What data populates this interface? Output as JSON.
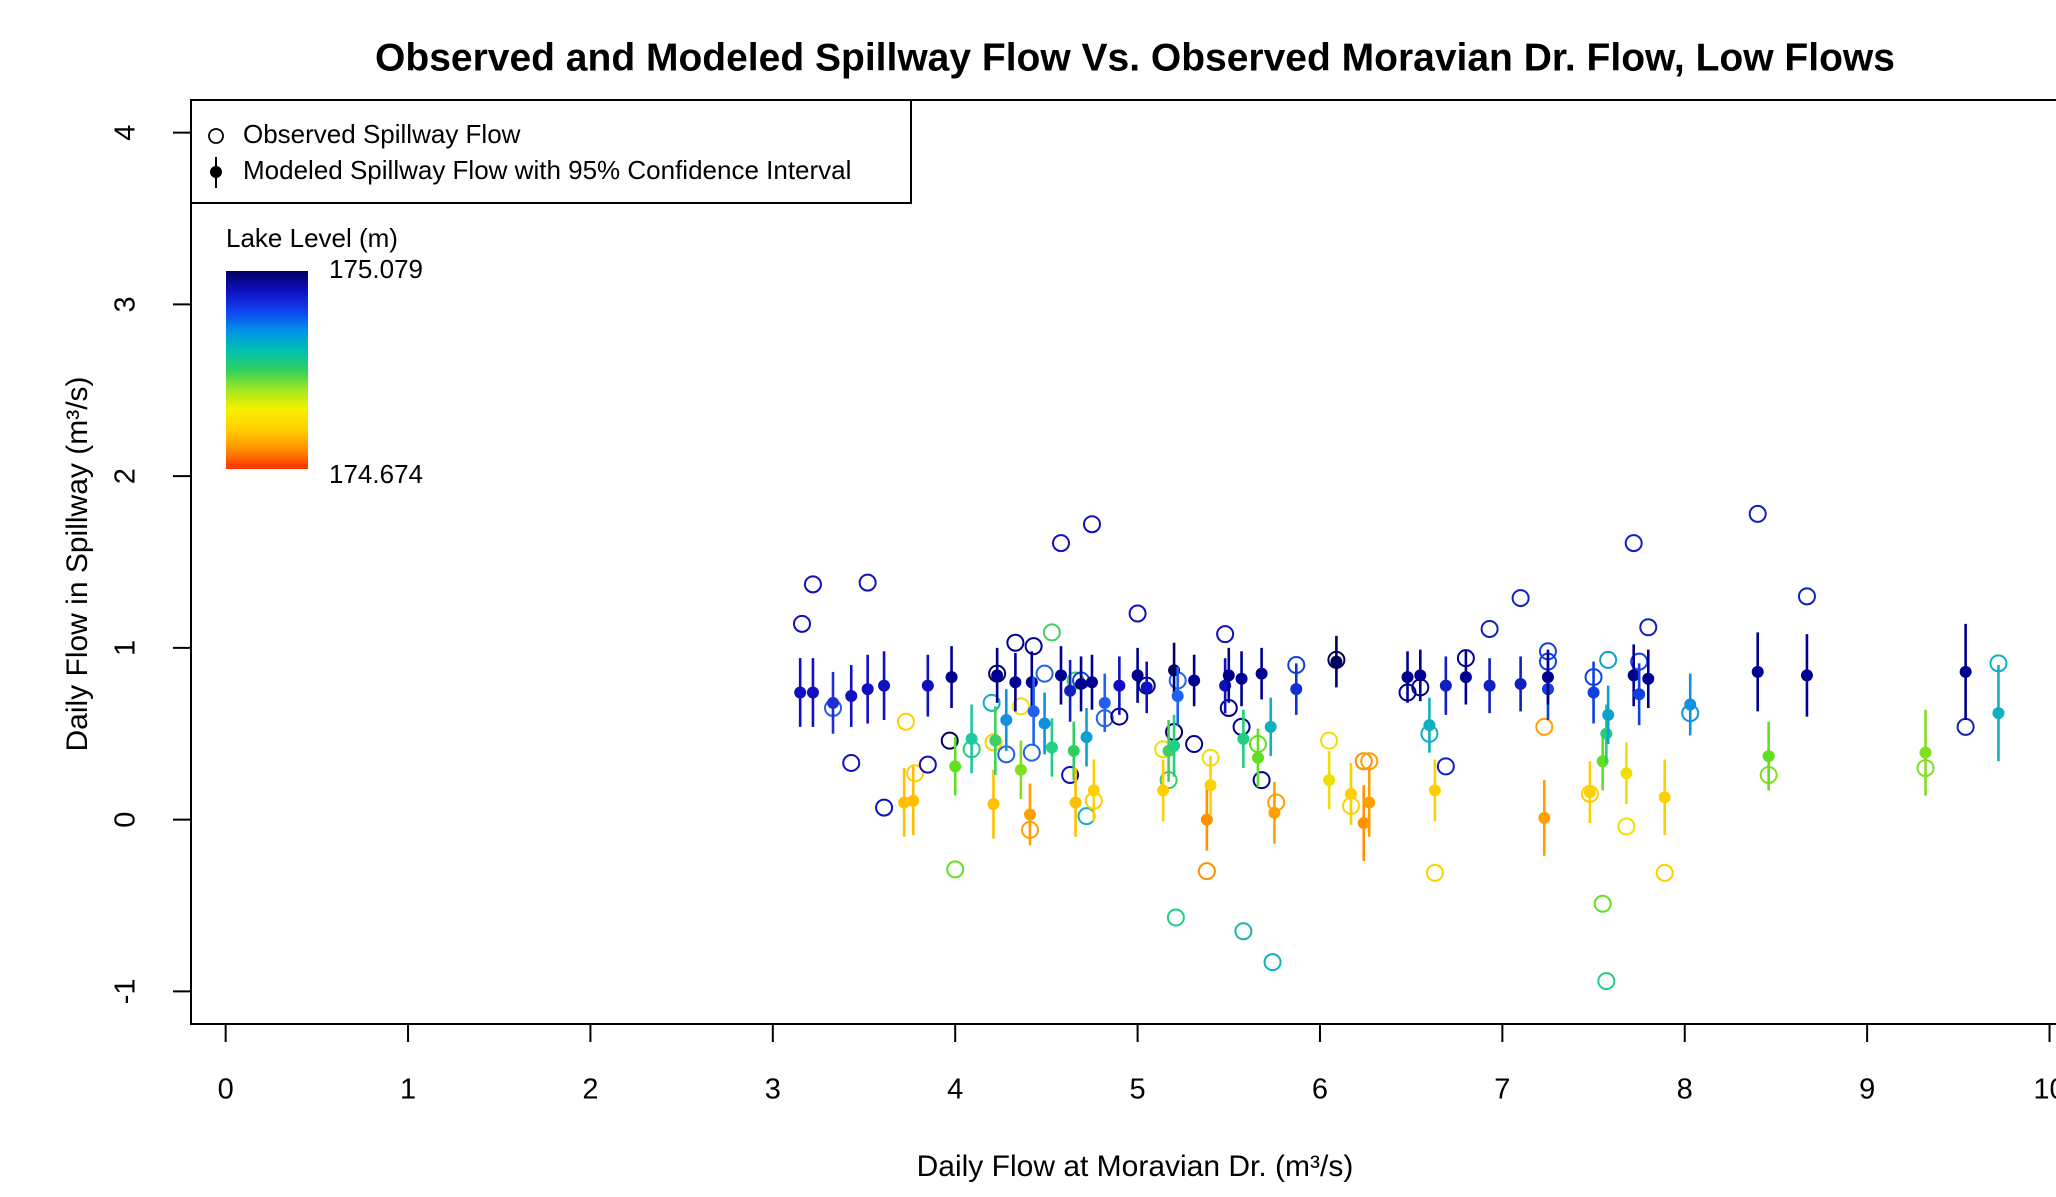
{
  "chart_data": {
    "type": "scatter",
    "title": "Observed and Modeled Spillway Flow Vs. Observed Moravian Dr. Flow, Low Flows",
    "x_label": "Daily Flow at Moravian Dr. (m³/s)",
    "y_label": "Daily Flow in Spillway (m³/s)",
    "xlim": [
      -0.19,
      10.03
    ],
    "ylim": [
      -1.19,
      4.19
    ],
    "xticks": [
      0,
      1,
      2,
      3,
      4,
      5,
      6,
      7,
      8,
      9,
      10
    ],
    "yticks": [
      -1,
      0,
      1,
      2,
      3,
      4
    ],
    "grid": false,
    "legend": {
      "position": "top-left"
    },
    "colorbar": {
      "title": "Lake Level (m)",
      "max": 175.079,
      "min": 174.674,
      "colors": [
        "#ff3000",
        "#ff9000",
        "#ffd000",
        "#f8f000",
        "#a0e820",
        "#30d060",
        "#00c0b0",
        "#0090e8",
        "#1040f0",
        "#1010c0",
        "#000060"
      ]
    },
    "series": [
      {
        "name": "Observed Spillway Flow",
        "marker": "open-circle",
        "x": [
          3.16,
          3.22,
          3.33,
          3.43,
          3.52,
          3.61,
          3.73,
          3.78,
          3.85,
          3.97,
          4.0,
          4.09,
          4.2,
          4.21,
          4.23,
          4.28,
          4.33,
          4.36,
          4.41,
          4.42,
          4.43,
          4.49,
          4.53,
          4.58,
          4.63,
          4.66,
          4.69,
          4.72,
          4.75,
          4.76,
          4.82,
          4.9,
          5.0,
          5.05,
          5.14,
          5.17,
          5.2,
          5.21,
          5.22,
          5.31,
          5.38,
          5.4,
          5.48,
          5.5,
          5.57,
          5.58,
          5.66,
          5.68,
          5.74,
          5.76,
          5.87,
          6.05,
          6.09,
          6.17,
          6.24,
          6.27,
          6.48,
          6.55,
          6.6,
          6.63,
          6.69,
          6.8,
          6.93,
          7.1,
          7.23,
          7.25,
          7.25,
          7.48,
          7.5,
          7.55,
          7.57,
          7.58,
          7.68,
          7.72,
          7.75,
          7.8,
          7.89,
          8.03,
          8.4,
          8.46,
          8.67,
          9.32,
          9.54,
          9.72
        ],
        "values": [
          1.14,
          1.37,
          0.65,
          0.33,
          1.38,
          0.07,
          0.57,
          0.27,
          0.32,
          0.46,
          -0.29,
          0.41,
          0.68,
          0.45,
          0.85,
          0.38,
          1.03,
          0.66,
          -0.06,
          0.39,
          1.01,
          0.85,
          1.09,
          1.61,
          0.26,
          0.81,
          0.81,
          0.02,
          1.72,
          0.11,
          0.59,
          0.6,
          1.2,
          0.78,
          0.41,
          0.23,
          0.51,
          -0.57,
          0.81,
          0.44,
          -0.3,
          0.36,
          1.08,
          0.65,
          0.54,
          -0.65,
          0.44,
          0.23,
          -0.83,
          0.1,
          0.9,
          0.46,
          0.93,
          0.08,
          0.34,
          0.34,
          0.74,
          0.77,
          0.5,
          -0.31,
          0.31,
          0.94,
          1.11,
          1.29,
          0.54,
          0.98,
          0.92,
          0.15,
          0.83,
          -0.49,
          -0.94,
          0.93,
          -0.04,
          1.61,
          0.92,
          1.12,
          -0.31,
          0.62,
          1.78,
          0.26,
          1.3,
          0.3,
          0.54,
          0.91
        ],
        "colors": [
          "#1010c0",
          "#1010c0",
          "#2060f0",
          "#1010c0",
          "#1010c0",
          "#1010c0",
          "#ffd000",
          "#ffd000",
          "#1010c0",
          "#000060",
          "#60e020",
          "#20d080",
          "#10b0c0",
          "#ffd000",
          "#000060",
          "#2060f0",
          "#000090",
          "#f0e000",
          "#ffa000",
          "#2060f0",
          "#000090",
          "#2060f0",
          "#40d060",
          "#1010c0",
          "#1010c0",
          "#40d060",
          "#1040e0",
          "#10b0c0",
          "#1010c0",
          "#ffd000",
          "#2060f0",
          "#000090",
          "#1010c0",
          "#000090",
          "#f0e000",
          "#30d060",
          "#000060",
          "#20d080",
          "#2060f0",
          "#000090",
          "#ff9000",
          "#f0e000",
          "#1010c0",
          "#000090",
          "#000090",
          "#20b0b0",
          "#60e020",
          "#000090",
          "#10b0c0",
          "#ffa000",
          "#1040e0",
          "#f0e000",
          "#000060",
          "#ffd000",
          "#ff9000",
          "#ffa000",
          "#000090",
          "#000090",
          "#10b0c0",
          "#ffd000",
          "#1020c0",
          "#000090",
          "#1020c0",
          "#1020c0",
          "#ffa000",
          "#1040e0",
          "#1040e0",
          "#ffd000",
          "#1040e0",
          "#60e020",
          "#20d080",
          "#10a0d0",
          "#f0e000",
          "#1020c0",
          "#1040e0",
          "#1020c0",
          "#ffd000",
          "#1090e0",
          "#1020c0",
          "#80e020",
          "#1020c0",
          "#80e020",
          "#1020c0",
          "#10b0c0"
        ]
      },
      {
        "name": "Modeled Spillway Flow with 95% Confidence Interval",
        "marker": "filled-circle",
        "x": [
          3.15,
          3.22,
          3.33,
          3.43,
          3.52,
          3.61,
          3.72,
          3.77,
          3.85,
          3.98,
          4.0,
          4.09,
          4.21,
          4.22,
          4.23,
          4.28,
          4.33,
          4.36,
          4.41,
          4.42,
          4.43,
          4.49,
          4.53,
          4.58,
          4.63,
          4.65,
          4.66,
          4.69,
          4.72,
          4.75,
          4.76,
          4.82,
          4.9,
          5.0,
          5.05,
          5.14,
          5.17,
          5.2,
          5.2,
          5.22,
          5.31,
          5.38,
          5.4,
          5.48,
          5.5,
          5.57,
          5.58,
          5.66,
          5.68,
          5.73,
          5.75,
          5.87,
          6.05,
          6.09,
          6.17,
          6.24,
          6.27,
          6.48,
          6.55,
          6.6,
          6.63,
          6.69,
          6.8,
          6.93,
          7.1,
          7.23,
          7.25,
          7.25,
          7.48,
          7.5,
          7.55,
          7.57,
          7.58,
          7.68,
          7.72,
          7.75,
          7.8,
          7.89,
          8.03,
          8.4,
          8.46,
          8.67,
          9.32,
          9.54,
          9.72
        ],
        "values": [
          0.74,
          0.74,
          0.68,
          0.72,
          0.76,
          0.78,
          0.1,
          0.11,
          0.78,
          0.83,
          0.31,
          0.47,
          0.09,
          0.46,
          0.84,
          0.58,
          0.8,
          0.29,
          0.03,
          0.8,
          0.63,
          0.56,
          0.42,
          0.84,
          0.75,
          0.4,
          0.1,
          0.79,
          0.48,
          0.8,
          0.17,
          0.68,
          0.78,
          0.84,
          0.77,
          0.17,
          0.4,
          0.87,
          0.43,
          0.72,
          0.81,
          0.0,
          0.2,
          0.78,
          0.84,
          0.82,
          0.47,
          0.36,
          0.85,
          0.54,
          0.04,
          0.76,
          0.23,
          0.92,
          0.15,
          -0.02,
          0.1,
          0.83,
          0.84,
          0.55,
          0.17,
          0.78,
          0.83,
          0.78,
          0.79,
          0.01,
          0.76,
          0.83,
          0.16,
          0.74,
          0.34,
          0.5,
          0.61,
          0.27,
          0.84,
          0.73,
          0.82,
          0.13,
          0.67,
          0.86,
          0.37,
          0.84,
          0.39,
          0.86,
          0.62
        ],
        "errors": [
          0.2,
          0.2,
          0.18,
          0.18,
          0.2,
          0.2,
          0.2,
          0.2,
          0.18,
          0.18,
          0.17,
          0.2,
          0.2,
          0.2,
          0.16,
          0.18,
          0.17,
          0.17,
          0.18,
          0.18,
          0.2,
          0.18,
          0.17,
          0.17,
          0.18,
          0.17,
          0.2,
          0.16,
          0.17,
          0.16,
          0.18,
          0.17,
          0.17,
          0.16,
          0.15,
          0.18,
          0.18,
          0.16,
          0.18,
          0.17,
          0.15,
          0.18,
          0.17,
          0.16,
          0.16,
          0.16,
          0.17,
          0.17,
          0.15,
          0.17,
          0.18,
          0.15,
          0.17,
          0.15,
          0.18,
          0.22,
          0.2,
          0.15,
          0.15,
          0.16,
          0.18,
          0.17,
          0.16,
          0.16,
          0.16,
          0.22,
          0.18,
          0.16,
          0.18,
          0.18,
          0.17,
          0.17,
          0.17,
          0.18,
          0.18,
          0.18,
          0.17,
          0.22,
          0.18,
          0.23,
          0.2,
          0.24,
          0.25,
          0.28,
          0.28
        ],
        "colors": [
          "#1010c0",
          "#1010c0",
          "#2030d0",
          "#1010c0",
          "#1010c0",
          "#1010c0",
          "#ffc000",
          "#ffc000",
          "#1010c0",
          "#000090",
          "#60e020",
          "#20c8a0",
          "#ffc000",
          "#40d060",
          "#000090",
          "#1090e0",
          "#000090",
          "#80e020",
          "#ffa000",
          "#000090",
          "#2060f0",
          "#1090e0",
          "#20d080",
          "#000090",
          "#1020c0",
          "#30d060",
          "#ffc000",
          "#000090",
          "#10a0d0",
          "#000090",
          "#ffd000",
          "#2060f0",
          "#1010c0",
          "#000090",
          "#1010c0",
          "#ffd000",
          "#40d060",
          "#000060",
          "#20d080",
          "#2060f0",
          "#000090",
          "#ff9000",
          "#ffd000",
          "#1010c0",
          "#000090",
          "#000090",
          "#20d080",
          "#60e020",
          "#000090",
          "#10b0c0",
          "#ffa000",
          "#1030d0",
          "#f0e000",
          "#000060",
          "#ffd000",
          "#ff9000",
          "#ffa000",
          "#000090",
          "#000090",
          "#10b0c0",
          "#ffd000",
          "#1020c0",
          "#000090",
          "#1020c0",
          "#1020c0",
          "#ffa000",
          "#1040e0",
          "#000090",
          "#ffd000",
          "#1040e0",
          "#60e020",
          "#20d080",
          "#10a0d0",
          "#f0e000",
          "#000090",
          "#1040e0",
          "#000090",
          "#ffd000",
          "#1090e0",
          "#000090",
          "#60e020",
          "#000090",
          "#80e020",
          "#000090",
          "#10b0c0"
        ]
      }
    ]
  }
}
